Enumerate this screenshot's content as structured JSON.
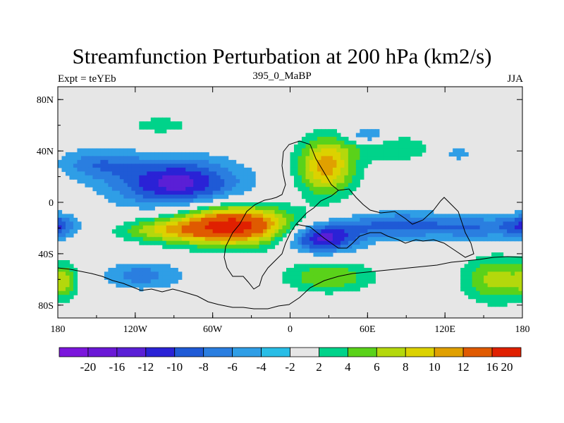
{
  "chart_data": {
    "type": "heatmap",
    "title": "Streamfunction Perturbation at 200 hPa (km2/s)",
    "left_label": "Expt = teYEb",
    "center_label": "395_0_MaBP",
    "right_label": "JJA",
    "xlim": [
      -180,
      180
    ],
    "ylim": [
      -90,
      90
    ],
    "x_ticks": [
      {
        "value": -180,
        "label": "180"
      },
      {
        "value": -120,
        "label": "120W"
      },
      {
        "value": -60,
        "label": "60W"
      },
      {
        "value": 0,
        "label": "0"
      },
      {
        "value": 60,
        "label": "60E"
      },
      {
        "value": 120,
        "label": "120E"
      },
      {
        "value": 180,
        "label": "180"
      }
    ],
    "y_ticks": [
      {
        "value": 80,
        "label": "80N"
      },
      {
        "value": 40,
        "label": "40N"
      },
      {
        "value": 0,
        "label": "0"
      },
      {
        "value": -40,
        "label": "40S"
      },
      {
        "value": -80,
        "label": "80S"
      }
    ],
    "background_color": "#e6e6e6",
    "colorbar": {
      "colors": [
        "#7b16dc",
        "#6a18d6",
        "#5a1fd6",
        "#2a22d6",
        "#1f5ad6",
        "#2a7ee0",
        "#2f9ee6",
        "#28bde6",
        "#e6e6e6",
        "#00d38a",
        "#5ad21a",
        "#b4d80c",
        "#dcd200",
        "#e0a000",
        "#e05a00",
        "#e02000"
      ],
      "labels": [
        "-20",
        "-16",
        "-12",
        "-10",
        "-8",
        "-6",
        "-4",
        "-2",
        "2",
        "4",
        "6",
        "8",
        "10",
        "12",
        "16",
        "20"
      ]
    },
    "features": [
      {
        "name": "north-pacific-low",
        "lon": -88,
        "lat": 15,
        "rlon": 48,
        "rlat": 19,
        "amp": -11
      },
      {
        "name": "north-pacific-low-west",
        "lon": -150,
        "lat": 30,
        "rlon": 30,
        "rlat": 12,
        "amp": -5
      },
      {
        "name": "tropical-east-pacific-low",
        "lon": -180,
        "lat": -18,
        "rlon": 14,
        "rlat": 9,
        "amp": -6
      },
      {
        "name": "south-america-high",
        "lon": -45,
        "lat": -18,
        "rlon": 44,
        "rlat": 15,
        "amp": 18
      },
      {
        "name": "south-america-high-tail",
        "lon": -100,
        "lat": -22,
        "rlon": 35,
        "rlat": 9,
        "amp": 6
      },
      {
        "name": "eurasia-high",
        "lon": 28,
        "lat": 28,
        "rlon": 22,
        "rlat": 22,
        "amp": 11
      },
      {
        "name": "eurasia-high-tail",
        "lon": 80,
        "lat": 42,
        "rlon": 35,
        "rlat": 10,
        "amp": 4
      },
      {
        "name": "africa-low",
        "lon": 25,
        "lat": -28,
        "rlon": 28,
        "rlat": 11,
        "amp": -11
      },
      {
        "name": "indian-ocean-low",
        "lon": 85,
        "lat": -18,
        "rlon": 45,
        "rlat": 10,
        "amp": -7
      },
      {
        "name": "west-pacific-low",
        "lon": 150,
        "lat": -20,
        "rlon": 35,
        "rlat": 10,
        "amp": -5
      },
      {
        "name": "north-atlantic-low",
        "lon": 60,
        "lat": 52,
        "rlon": 14,
        "rlat": 6,
        "amp": -5
      },
      {
        "name": "greenland-high",
        "lon": -100,
        "lat": 60,
        "rlon": 20,
        "rlat": 6,
        "amp": 4
      },
      {
        "name": "south-atlantic-high",
        "lon": 30,
        "lat": -58,
        "rlon": 35,
        "rlat": 12,
        "amp": 6
      },
      {
        "name": "southern-pacific-low",
        "lon": -115,
        "lat": -57,
        "rlon": 32,
        "rlat": 11,
        "amp": -5
      },
      {
        "name": "south-pacific-high",
        "lon": 160,
        "lat": -60,
        "rlon": 26,
        "rlat": 18,
        "amp": 7
      },
      {
        "name": "far-west-high",
        "lon": -175,
        "lat": -62,
        "rlon": 10,
        "rlat": 12,
        "amp": 5
      },
      {
        "name": "central-pacific-low-north",
        "lon": 128,
        "lat": 38,
        "rlon": 18,
        "rlat": 7,
        "amp": -3
      }
    ]
  }
}
